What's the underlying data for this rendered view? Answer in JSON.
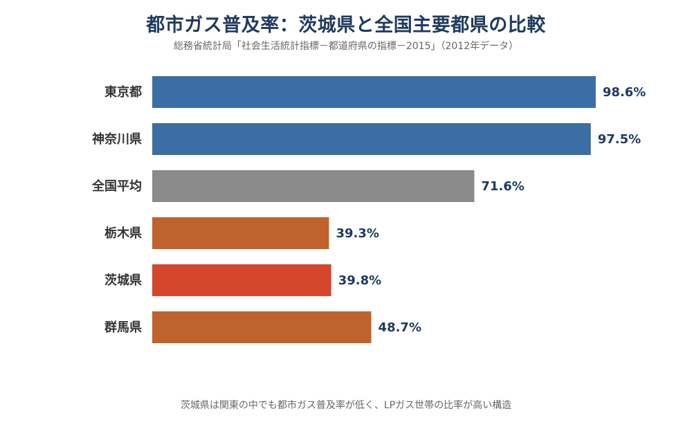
{
  "title": "都市ガス普及率：茨城県と全国主要都県の比較",
  "subtitle": "総務省統計局「社会生活統計指標－都道府県の指標－2015」（2012年データ）",
  "footnote": "茨城県は関東の中でも都市ガス普及率が低く、LPガス世帯の比率が高い構造",
  "chart_data": {
    "type": "bar",
    "orientation": "horizontal",
    "title": "都市ガス普及率：茨城県と全国主要都県の比較",
    "subtitle": "総務省統計局「社会生活統計指標－都道府県の指標－2015」（2012年データ）",
    "categories": [
      "東京都",
      "神奈川県",
      "全国平均",
      "栃木県",
      "茨城県",
      "群馬県"
    ],
    "values": [
      98.6,
      97.5,
      71.6,
      39.3,
      39.8,
      48.7
    ],
    "value_labels": [
      "98.6%",
      "97.5%",
      "71.6%",
      "39.3%",
      "39.8%",
      "48.7%"
    ],
    "colors": [
      "#3a6ea5",
      "#3a6ea5",
      "#8a8a8a",
      "#c0622c",
      "#d4472d",
      "#c0622c"
    ],
    "xlim": [
      0,
      100
    ],
    "unit": "%",
    "grid": false,
    "legend": "none",
    "xlabel": "",
    "ylabel": ""
  }
}
